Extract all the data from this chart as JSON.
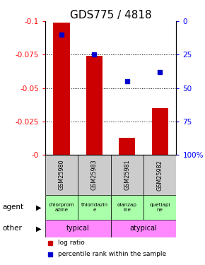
{
  "title": "GDS775 / 4818",
  "samples": [
    "GSM25980",
    "GSM25983",
    "GSM25981",
    "GSM25982"
  ],
  "log_ratio": [
    -0.099,
    -0.074,
    -0.013,
    -0.035
  ],
  "percentile_rank": [
    10,
    25,
    45,
    38
  ],
  "ylim_left": [
    -0.1,
    0.0
  ],
  "yticks_left": [
    0.0,
    -0.025,
    -0.05,
    -0.075,
    -0.1
  ],
  "yticks_right": [
    100,
    75,
    50,
    25,
    0
  ],
  "ytick_labels_left": [
    "-0",
    "-0.025",
    "-0.05",
    "-0.075",
    "-0.1"
  ],
  "ytick_labels_right": [
    "100%",
    "75",
    "50",
    "25",
    "0"
  ],
  "bar_color": "#cc0000",
  "dot_color": "#0000cc",
  "agent_labels": [
    "chlorprom\nazine",
    "thioridazin\ne",
    "olanzap\nine",
    "quetiapi\nne"
  ],
  "other_groups": [
    [
      "typical",
      2
    ],
    [
      "atypical",
      2
    ]
  ],
  "sample_bg_color": "#cccccc",
  "agent_bg_color": "#aaffaa",
  "other_bg_color": "#ff88ff",
  "legend_red": "log ratio",
  "legend_blue": "percentile rank within the sample",
  "title_fontsize": 11,
  "tick_fontsize": 7.5,
  "bar_width": 0.5
}
